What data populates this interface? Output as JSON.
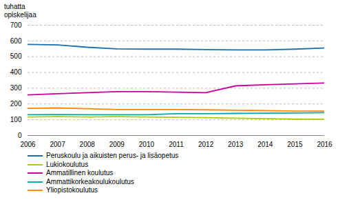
{
  "chart_data": {
    "type": "line",
    "ylabel": "tuhatta\nopiskelijaa",
    "x": [
      2006,
      2007,
      2008,
      2009,
      2010,
      2011,
      2012,
      2013,
      2014,
      2015,
      2016
    ],
    "xlim": [
      2006,
      2016
    ],
    "xticks": [
      2006,
      2007,
      2008,
      2009,
      2010,
      2011,
      2012,
      2013,
      2014,
      2015,
      2016
    ],
    "ylim": [
      0,
      700
    ],
    "yticks": [
      0,
      100,
      200,
      300,
      400,
      500,
      600,
      700
    ],
    "grid": true,
    "legend": "bottom",
    "series": [
      {
        "name": "Peruskoulu ja aikuisten perus- ja lisäopetus",
        "color": "#1a6faf",
        "values": [
          578,
          575,
          560,
          550,
          548,
          548,
          545,
          543,
          543,
          548,
          555
        ]
      },
      {
        "name": "Lukiokoulutus",
        "color": "#aacc00",
        "values": [
          118,
          120,
          118,
          120,
          118,
          115,
          113,
          110,
          107,
          104,
          103
        ]
      },
      {
        "name": "Ammatillinen koulutus",
        "color": "#cc0099",
        "values": [
          258,
          265,
          272,
          278,
          278,
          275,
          272,
          315,
          322,
          328,
          333
        ]
      },
      {
        "name": "Ammattikorkeakoulukoulutus",
        "color": "#00aaaa",
        "values": [
          132,
          133,
          132,
          132,
          132,
          138,
          138,
          140,
          142,
          143,
          145
        ]
      },
      {
        "name": "Yliopistokoulutus",
        "color": "#ff8800",
        "values": [
          172,
          175,
          170,
          165,
          165,
          165,
          163,
          160,
          158,
          155,
          155
        ]
      }
    ]
  }
}
